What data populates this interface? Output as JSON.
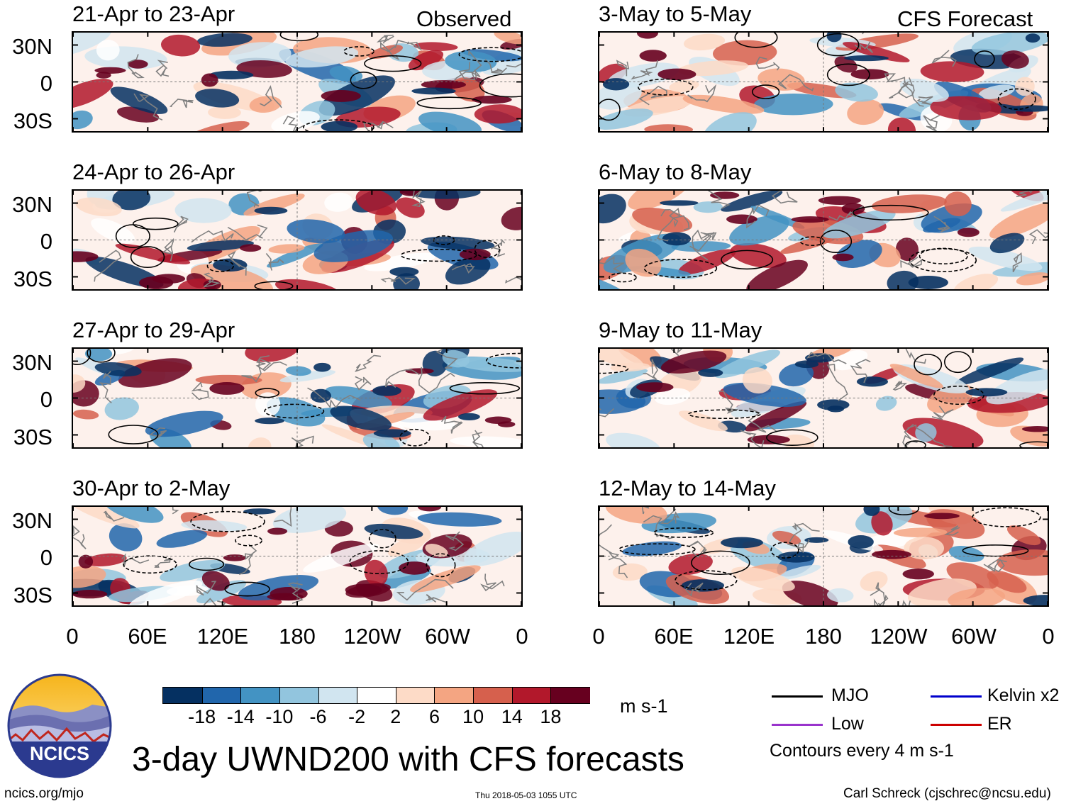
{
  "title": "3-day UWND200 with CFS forecasts",
  "footer": {
    "site": "ncics.org/mjo",
    "timestamp": "Thu 2018-05-03 1055 UTC",
    "author": "Carl Schreck (cjschrec@ncsu.edu)"
  },
  "logo": {
    "text": "NCICS"
  },
  "left_column": {
    "label": "Observed"
  },
  "right_column": {
    "label": "CFS Forecast"
  },
  "periods_left": [
    "21-Apr to 23-Apr",
    "24-Apr to 26-Apr",
    "27-Apr to 29-Apr",
    "30-Apr to 2-May"
  ],
  "periods_right": [
    "3-May to 5-May",
    "6-May to 8-May",
    "9-May to 11-May",
    "12-May to 14-May"
  ],
  "lat_labels": [
    "30N",
    "0",
    "30S"
  ],
  "lon_labels": [
    "0",
    "60E",
    "120E",
    "180",
    "120W",
    "60W",
    "0"
  ],
  "colorbar": {
    "unit": "m s-1",
    "ticks": [
      "-18",
      "-14",
      "-10",
      "-6",
      "-2",
      "2",
      "6",
      "10",
      "14",
      "18"
    ],
    "colors": [
      "#053061",
      "#2166ac",
      "#4393c3",
      "#92c5de",
      "#d1e5f0",
      "#ffffff",
      "#fddbc7",
      "#f4a582",
      "#d6604d",
      "#b2182b",
      "#67001f"
    ]
  },
  "legend": {
    "items": [
      {
        "label": "MJO",
        "color": "#000000"
      },
      {
        "label": "Kelvin x2",
        "color": "#0000cc"
      },
      {
        "label": "Low",
        "color": "#9933cc"
      },
      {
        "label": "ER",
        "color": "#cc0000"
      }
    ],
    "note": "Contours every 4 m s-1"
  }
}
